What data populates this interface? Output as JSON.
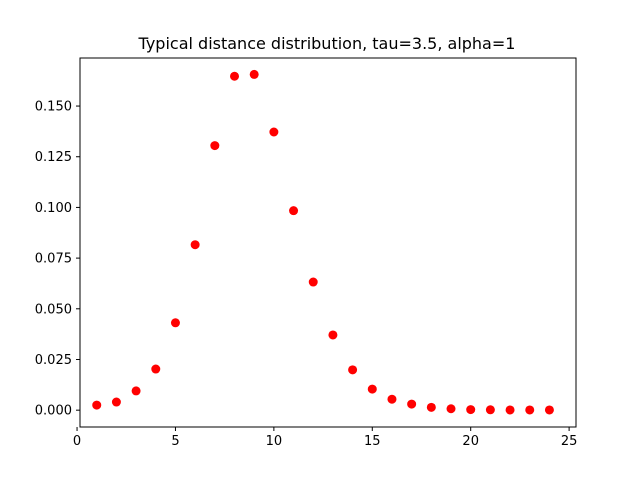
{
  "chart_data": {
    "type": "scatter",
    "title": "Typical distance distribution, tau=3.5, alpha=1",
    "xlabel": "",
    "ylabel": "",
    "xlim": [
      0.15,
      25.35
    ],
    "ylim": [
      -0.0083,
      0.1737
    ],
    "xticks": [
      0,
      5,
      10,
      15,
      20,
      25
    ],
    "xtick_labels": [
      "0",
      "5",
      "10",
      "15",
      "20",
      "25"
    ],
    "yticks": [
      0.0,
      0.025,
      0.05,
      0.075,
      0.1,
      0.125,
      0.15
    ],
    "ytick_labels": [
      "0.000",
      "0.025",
      "0.050",
      "0.075",
      "0.100",
      "0.125",
      "0.150"
    ],
    "grid": false,
    "legend": "none",
    "marker_color": "#ff0000",
    "series": [
      {
        "x": [
          1,
          2,
          3,
          4,
          5,
          6,
          7,
          8,
          9,
          10,
          11,
          12,
          13,
          14,
          15,
          16,
          17,
          18,
          19,
          20,
          21,
          22,
          23,
          24
        ],
        "y": [
          0.0025,
          0.004,
          0.0095,
          0.0203,
          0.0431,
          0.0816,
          0.1305,
          0.1647,
          0.1656,
          0.1372,
          0.0984,
          0.0632,
          0.0371,
          0.0199,
          0.0104,
          0.0054,
          0.003,
          0.0014,
          0.0007,
          0.0003,
          0.0002,
          0.0001,
          0.0001,
          0.0001
        ]
      }
    ]
  }
}
